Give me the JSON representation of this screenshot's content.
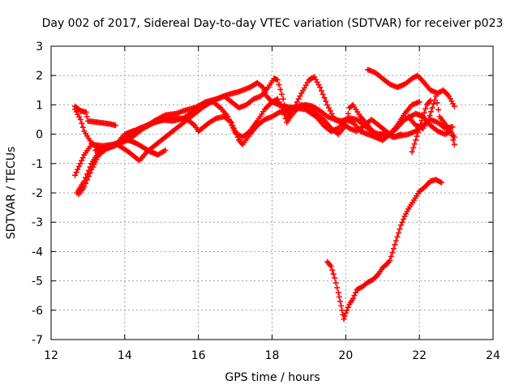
{
  "chart_data": {
    "type": "scatter",
    "title": "Day 002 of 2017, Sidereal Day-to-day VTEC variation (SDTVAR) for receiver p023",
    "xlabel": "GPS time / hours",
    "ylabel": "SDTVAR / TECUs",
    "xlim": [
      12,
      24
    ],
    "ylim": [
      -7,
      3
    ],
    "xticks": [
      12,
      14,
      16,
      18,
      20,
      22,
      24
    ],
    "yticks": [
      -7,
      -6,
      -5,
      -4,
      -3,
      -2,
      -1,
      0,
      1,
      2,
      3
    ],
    "grid": true,
    "marker": "plus",
    "color": "#ff0000",
    "series": [
      {
        "name": "arc-1",
        "points": [
          [
            12.65,
            0.95
          ],
          [
            12.8,
            0.8
          ],
          [
            12.95,
            0.75
          ],
          [
            13.0,
            0.45
          ],
          [
            13.3,
            0.4
          ],
          [
            13.6,
            0.35
          ],
          [
            13.75,
            0.3
          ]
        ]
      },
      {
        "name": "arc-2",
        "points": [
          [
            12.65,
            0.85
          ],
          [
            12.8,
            0.5
          ],
          [
            12.9,
            0.1
          ],
          [
            13.1,
            -0.3
          ],
          [
            13.3,
            -0.5
          ],
          [
            13.6,
            -0.45
          ],
          [
            13.9,
            -0.3
          ],
          [
            14.2,
            -0.1
          ],
          [
            14.5,
            0.2
          ],
          [
            14.8,
            0.45
          ],
          [
            15.1,
            0.65
          ],
          [
            15.4,
            0.7
          ],
          [
            15.6,
            0.8
          ],
          [
            15.9,
            0.9
          ],
          [
            16.2,
            1.1
          ],
          [
            16.5,
            1.2
          ],
          [
            16.8,
            1.35
          ],
          [
            17.1,
            1.45
          ],
          [
            17.4,
            1.6
          ],
          [
            17.6,
            1.75
          ],
          [
            17.75,
            1.6
          ],
          [
            17.85,
            1.3
          ],
          [
            18.0,
            1.1
          ],
          [
            18.3,
            0.95
          ],
          [
            18.6,
            0.9
          ],
          [
            18.9,
            0.85
          ],
          [
            19.2,
            0.6
          ],
          [
            19.4,
            0.3
          ],
          [
            19.6,
            0.1
          ],
          [
            19.8,
            0.2
          ],
          [
            20.0,
            0.5
          ],
          [
            20.2,
            0.4
          ],
          [
            20.4,
            0.1
          ],
          [
            20.6,
            0.0
          ],
          [
            20.8,
            -0.1
          ],
          [
            21.0,
            -0.2
          ],
          [
            21.3,
            0.1
          ],
          [
            21.6,
            0.5
          ],
          [
            21.9,
            0.7
          ],
          [
            22.1,
            0.6
          ],
          [
            22.3,
            0.3
          ],
          [
            22.5,
            0.1
          ],
          [
            22.7,
            0.0
          ],
          [
            22.85,
            0.1
          ],
          [
            22.95,
            -0.1
          ]
        ]
      },
      {
        "name": "arc-3",
        "points": [
          [
            12.7,
            -2.0
          ],
          [
            12.9,
            -1.6
          ],
          [
            13.1,
            -1.0
          ],
          [
            13.3,
            -0.6
          ],
          [
            13.6,
            -0.4
          ],
          [
            13.9,
            -0.3
          ],
          [
            14.1,
            0.0
          ],
          [
            14.4,
            0.2
          ],
          [
            14.7,
            0.35
          ],
          [
            15.0,
            0.5
          ],
          [
            15.3,
            0.45
          ],
          [
            15.6,
            0.55
          ],
          [
            15.9,
            0.8
          ],
          [
            16.2,
            1.05
          ],
          [
            16.4,
            1.1
          ],
          [
            16.6,
            0.9
          ],
          [
            16.8,
            0.6
          ],
          [
            16.9,
            0.3
          ],
          [
            17.0,
            0.05
          ],
          [
            17.2,
            -0.1
          ],
          [
            17.4,
            0.1
          ],
          [
            17.6,
            0.45
          ],
          [
            17.8,
            0.85
          ],
          [
            18.0,
            1.1
          ],
          [
            18.15,
            1.2
          ],
          [
            18.3,
            0.8
          ],
          [
            18.4,
            0.4
          ],
          [
            18.5,
            0.6
          ],
          [
            18.7,
            0.9
          ],
          [
            18.9,
            1.0
          ],
          [
            19.1,
            0.95
          ],
          [
            19.3,
            0.8
          ],
          [
            19.5,
            0.6
          ],
          [
            19.7,
            0.5
          ],
          [
            19.9,
            0.45
          ],
          [
            20.1,
            0.55
          ],
          [
            20.3,
            0.5
          ],
          [
            20.5,
            0.3
          ],
          [
            20.7,
            0.1
          ],
          [
            20.9,
            0.0
          ],
          [
            21.1,
            0.0
          ],
          [
            21.3,
            -0.1
          ],
          [
            21.5,
            -0.05
          ],
          [
            21.7,
            0.0
          ],
          [
            21.9,
            0.1
          ],
          [
            22.1,
            0.3
          ],
          [
            22.3,
            0.5
          ],
          [
            22.5,
            0.4
          ],
          [
            22.7,
            0.2
          ],
          [
            22.9,
            0.25
          ]
        ]
      },
      {
        "name": "arc-4",
        "points": [
          [
            12.75,
            -2.05
          ],
          [
            12.9,
            -1.8
          ],
          [
            13.1,
            -1.2
          ],
          [
            13.3,
            -0.7
          ],
          [
            13.5,
            -0.5
          ],
          [
            13.8,
            -0.35
          ],
          [
            14.1,
            -0.6
          ],
          [
            14.4,
            -0.9
          ],
          [
            14.6,
            -0.6
          ],
          [
            14.9,
            -0.3
          ],
          [
            15.2,
            0.0
          ],
          [
            15.5,
            0.3
          ],
          [
            15.8,
            0.6
          ],
          [
            16.1,
            0.9
          ],
          [
            16.4,
            1.15
          ],
          [
            16.7,
            1.3
          ],
          [
            16.9,
            1.1
          ],
          [
            17.1,
            0.9
          ],
          [
            17.3,
            1.0
          ],
          [
            17.5,
            1.2
          ],
          [
            17.7,
            1.3
          ],
          [
            17.9,
            1.6
          ],
          [
            18.05,
            1.9
          ],
          [
            18.15,
            1.85
          ],
          [
            18.3,
            1.2
          ],
          [
            18.4,
            0.6
          ],
          [
            18.6,
            0.9
          ],
          [
            18.8,
            1.4
          ],
          [
            19.0,
            1.85
          ],
          [
            19.15,
            1.95
          ],
          [
            19.3,
            1.6
          ],
          [
            19.5,
            1.0
          ],
          [
            19.7,
            0.5
          ],
          [
            19.9,
            0.4
          ],
          [
            20.1,
            0.2
          ],
          [
            20.3,
            0.1
          ],
          [
            20.5,
            0.3
          ],
          [
            20.7,
            0.5
          ],
          [
            20.9,
            0.3
          ],
          [
            21.1,
            0.1
          ],
          [
            21.3,
            -0.1
          ],
          [
            21.5,
            0.0
          ]
        ]
      },
      {
        "name": "arc-5",
        "points": [
          [
            12.65,
            -1.4
          ],
          [
            12.9,
            -0.7
          ],
          [
            13.1,
            -0.35
          ],
          [
            13.4,
            -0.4
          ],
          [
            13.7,
            -0.35
          ],
          [
            13.9,
            -0.25
          ],
          [
            14.1,
            -0.2
          ],
          [
            14.3,
            -0.3
          ],
          [
            14.5,
            -0.45
          ],
          [
            14.7,
            -0.6
          ],
          [
            14.9,
            -0.7
          ],
          [
            15.1,
            -0.55
          ]
        ]
      },
      {
        "name": "arc-6",
        "points": [
          [
            13.2,
            -0.55
          ],
          [
            13.5,
            -0.45
          ],
          [
            13.8,
            -0.3
          ],
          [
            14.0,
            0.0
          ],
          [
            14.2,
            0.1
          ],
          [
            14.5,
            0.2
          ],
          [
            14.8,
            0.4
          ],
          [
            15.1,
            0.5
          ],
          [
            15.4,
            0.55
          ],
          [
            15.7,
            0.5
          ],
          [
            15.9,
            0.3
          ],
          [
            16.0,
            0.1
          ],
          [
            16.1,
            0.2
          ],
          [
            16.3,
            0.4
          ],
          [
            16.5,
            0.55
          ],
          [
            16.7,
            0.6
          ],
          [
            16.9,
            0.4
          ],
          [
            17.0,
            0.1
          ],
          [
            17.1,
            -0.2
          ],
          [
            17.2,
            -0.35
          ],
          [
            17.4,
            0.0
          ],
          [
            17.6,
            0.3
          ],
          [
            17.8,
            0.5
          ],
          [
            18.0,
            0.6
          ],
          [
            18.2,
            0.75
          ],
          [
            18.4,
            0.8
          ],
          [
            18.6,
            0.9
          ],
          [
            18.8,
            1.0
          ],
          [
            19.0,
            0.9
          ],
          [
            19.2,
            0.7
          ],
          [
            19.4,
            0.5
          ],
          [
            19.6,
            0.2
          ],
          [
            19.8,
            0.0
          ],
          [
            20.0,
            0.3
          ],
          [
            20.1,
            0.9
          ],
          [
            20.2,
            1.0
          ],
          [
            20.4,
            0.6
          ],
          [
            20.6,
            0.3
          ],
          [
            20.8,
            0.0
          ],
          [
            21.0,
            -0.2
          ],
          [
            21.2,
            0.0
          ],
          [
            21.4,
            0.3
          ],
          [
            21.6,
            0.7
          ],
          [
            21.8,
            1.0
          ],
          [
            22.0,
            1.1
          ]
        ]
      },
      {
        "name": "arc-7",
        "points": [
          [
            20.6,
            2.2
          ],
          [
            20.8,
            2.1
          ],
          [
            21.0,
            1.9
          ],
          [
            21.2,
            1.7
          ],
          [
            21.4,
            1.6
          ],
          [
            21.6,
            1.7
          ],
          [
            21.8,
            1.9
          ],
          [
            21.95,
            2.0
          ],
          [
            22.1,
            1.8
          ],
          [
            22.3,
            1.5
          ],
          [
            22.5,
            1.4
          ],
          [
            22.65,
            1.5
          ],
          [
            22.8,
            1.3
          ],
          [
            22.95,
            0.95
          ]
        ]
      },
      {
        "name": "arc-8",
        "points": [
          [
            21.7,
            0.6
          ],
          [
            21.9,
            0.3
          ],
          [
            22.1,
            0.2
          ],
          [
            22.25,
            0.5
          ],
          [
            22.35,
            0.9
          ],
          [
            22.45,
            1.3
          ],
          [
            22.55,
            0.6
          ],
          [
            22.7,
            0.35
          ],
          [
            22.85,
            0.1
          ],
          [
            22.95,
            -0.35
          ]
        ]
      },
      {
        "name": "arc-9",
        "points": [
          [
            21.8,
            -0.6
          ],
          [
            21.9,
            -0.2
          ],
          [
            22.0,
            0.2
          ],
          [
            22.1,
            0.6
          ],
          [
            22.2,
            1.0
          ],
          [
            22.3,
            1.15
          ]
        ]
      },
      {
        "name": "arc-10",
        "points": [
          [
            19.5,
            -4.35
          ],
          [
            19.6,
            -4.5
          ],
          [
            19.7,
            -4.9
          ],
          [
            19.8,
            -5.4
          ],
          [
            19.85,
            -5.7
          ],
          [
            19.9,
            -6.0
          ],
          [
            19.95,
            -6.3
          ],
          [
            20.0,
            -6.1
          ],
          [
            20.1,
            -5.8
          ],
          [
            20.2,
            -5.6
          ],
          [
            20.3,
            -5.3
          ],
          [
            20.45,
            -5.2
          ],
          [
            20.6,
            -5.05
          ],
          [
            20.75,
            -4.95
          ],
          [
            20.9,
            -4.75
          ],
          [
            21.0,
            -4.55
          ],
          [
            21.1,
            -4.45
          ],
          [
            21.2,
            -4.3
          ],
          [
            21.3,
            -3.9
          ],
          [
            21.4,
            -3.5
          ],
          [
            21.5,
            -3.1
          ],
          [
            21.6,
            -2.8
          ],
          [
            21.7,
            -2.55
          ],
          [
            21.85,
            -2.25
          ],
          [
            22.0,
            -1.95
          ],
          [
            22.15,
            -1.8
          ],
          [
            22.3,
            -1.6
          ],
          [
            22.45,
            -1.55
          ],
          [
            22.6,
            -1.65
          ]
        ]
      }
    ]
  }
}
